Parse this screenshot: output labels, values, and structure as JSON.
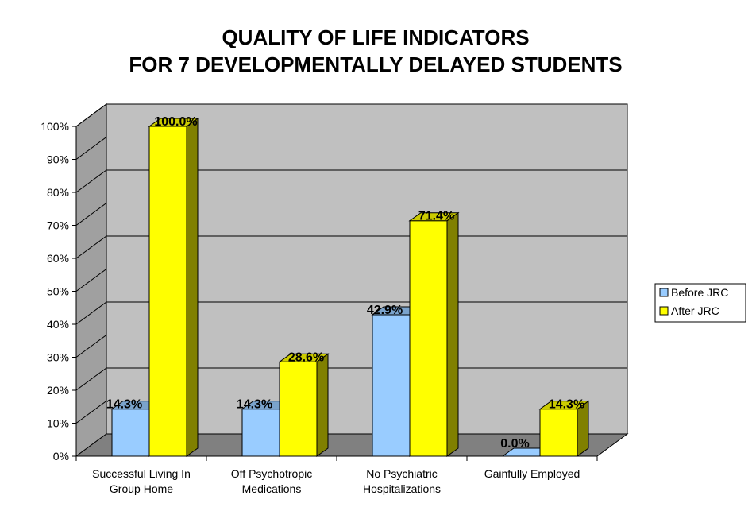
{
  "colors": {
    "before_front": "#99ccff",
    "before_top": "#7aa3cc",
    "before_side": "#5c7a99",
    "after_front": "#ffff00",
    "after_top": "#cccc00",
    "after_side": "#808000",
    "wall": "#c0c0c0",
    "side_wall": "#a0a0a0",
    "floor": "#808080"
  },
  "chart_data": {
    "type": "bar",
    "title": [
      "QUALITY OF LIFE INDICATORS",
      "FOR 7 DEVELOPMENTALLY DELAYED STUDENTS"
    ],
    "categories": [
      [
        "Successful Living In",
        "Group Home"
      ],
      [
        "Off Psychotropic",
        "Medications"
      ],
      [
        "No Psychiatric",
        "Hospitalizations"
      ],
      [
        "Gainfully Employed"
      ]
    ],
    "series": [
      {
        "name": "Before JRC",
        "values": [
          14.3,
          14.3,
          42.9,
          0.0
        ],
        "labels": [
          "14.3%",
          "14.3%",
          "42.9%",
          "0.0%"
        ]
      },
      {
        "name": "After JRC",
        "values": [
          100.0,
          28.6,
          71.4,
          14.3
        ],
        "labels": [
          "100.0%",
          "28.6%",
          "71.4%",
          "14.3%"
        ]
      }
    ],
    "ylim": [
      0,
      100
    ],
    "yticks": [
      "0%",
      "10%",
      "20%",
      "30%",
      "40%",
      "50%",
      "60%",
      "70%",
      "80%",
      "90%",
      "100%"
    ],
    "grid": true,
    "legend_position": "right"
  }
}
